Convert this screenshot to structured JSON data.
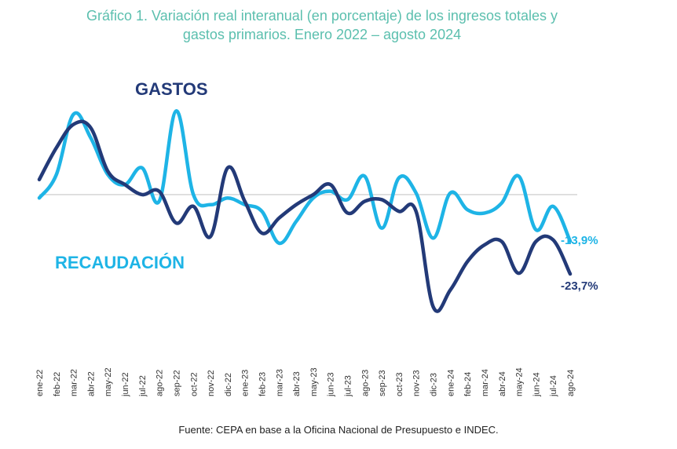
{
  "title_line1": "Gráfico 1. Variación real interanual (en porcentaje) de los ingresos totales y",
  "title_line2": "gastos primarios. Enero 2022 – agosto 2024",
  "source": "Fuente: CEPA en base a la Oficina Nacional de Presupuesto e INDEC.",
  "colors": {
    "gastos": "#233a78",
    "recaudacion": "#1eb4e6",
    "title": "#5bbfae",
    "zero_line": "#c8c8c8"
  },
  "chart_data": {
    "type": "line",
    "categories": [
      "ene-22",
      "feb-22",
      "mar-22",
      "abr-22",
      "may-22",
      "jun-22",
      "jul-22",
      "ago-22",
      "sep-22",
      "oct-22",
      "nov-22",
      "dic-22",
      "ene-23",
      "feb-23",
      "mar-23",
      "abr-23",
      "may-23",
      "jun-23",
      "jul-23",
      "ago-23",
      "sep-23",
      "oct-23",
      "nov-23",
      "dic-23",
      "ene-24",
      "feb-24",
      "mar-24",
      "abr-24",
      "may-24",
      "jun-24",
      "jul-24",
      "ago-24"
    ],
    "series": [
      {
        "name": "GASTOS",
        "values": [
          4.5,
          14,
          21,
          20,
          7,
          3,
          0,
          1,
          -8.5,
          -3.5,
          -12.5,
          8,
          -2,
          -11.5,
          -7,
          -3,
          0,
          3,
          -5.5,
          -2,
          -1.5,
          -5,
          -5,
          -33.5,
          -28.5,
          -20,
          -15,
          -14,
          -23.5,
          -14,
          -13.5,
          -23.7
        ]
      },
      {
        "name": "RECAUDACIÓN",
        "values": [
          -1,
          6,
          24,
          17,
          6,
          3,
          8,
          -2,
          25,
          0,
          -3,
          -1,
          -3,
          -5,
          -14.5,
          -8,
          -1,
          1,
          -1.5,
          5.5,
          -10,
          5,
          0.5,
          -13,
          0.5,
          -4.5,
          -5.5,
          -2.5,
          5.5,
          -10.5,
          -3.5,
          -13.9
        ]
      }
    ],
    "labels": {
      "gastos": "GASTOS",
      "recaudacion": "RECAUDACIÓN",
      "gastos_end": "-23,7%",
      "recaudacion_end": "-13,9%"
    },
    "ylim": [
      -38,
      30
    ],
    "grid": false,
    "zero_line": true
  }
}
